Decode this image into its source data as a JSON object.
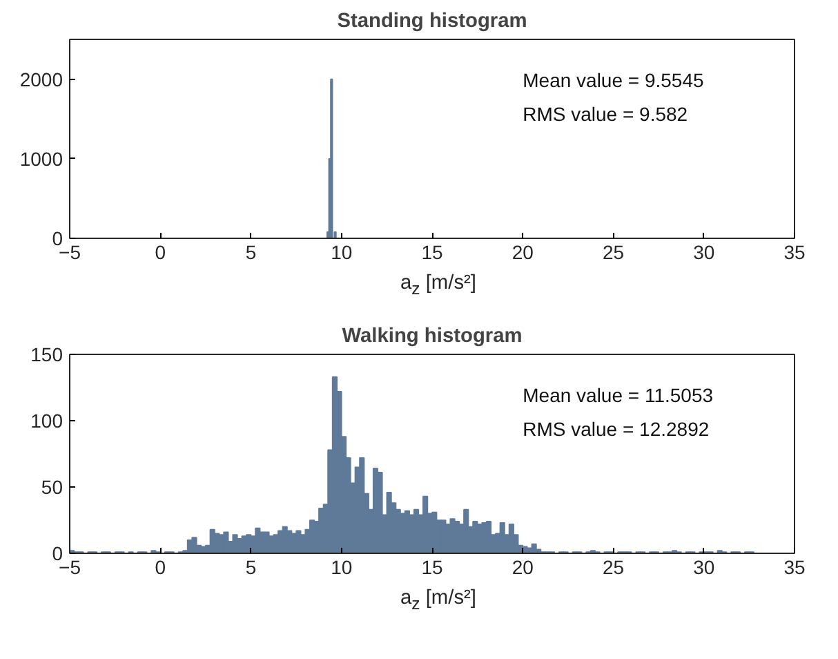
{
  "chart_data": [
    {
      "type": "histogram",
      "title": "Standing histogram",
      "xlabel": "a$_{z}$ [m/s²]",
      "bins": [
        9.0,
        9.1,
        9.2,
        9.3,
        9.4,
        9.5,
        9.6,
        9.7,
        9.8,
        9.9,
        10.0
      ],
      "values": [
        0,
        0,
        80,
        1000,
        2000,
        0,
        80,
        0,
        0,
        0
      ],
      "color": "#5f7a99",
      "xlim": [
        -5,
        35
      ],
      "ylim": [
        0,
        2500
      ],
      "xticks": [
        -5,
        0,
        5,
        10,
        15,
        20,
        25,
        30,
        35
      ],
      "yticks": [
        0,
        1000,
        2000
      ],
      "annotations": [
        "Mean value = 9.5545",
        "RMS value = 9.582"
      ]
    },
    {
      "type": "histogram",
      "title": "Walking histogram",
      "xlabel": "a$_{z}$ [m/s²]",
      "bins": [
        -5,
        -4.75,
        -4.5,
        -4.25,
        -4,
        -3.75,
        -3.5,
        -3.25,
        -3,
        -2.75,
        -2.5,
        -2.25,
        -2,
        -1.75,
        -1.5,
        -1.25,
        -1,
        -0.75,
        -0.5,
        -0.25,
        0,
        0.25,
        0.5,
        0.75,
        1,
        1.25,
        1.5,
        1.75,
        2,
        2.25,
        2.5,
        2.75,
        3,
        3.25,
        3.5,
        3.75,
        4,
        4.25,
        4.5,
        4.75,
        5,
        5.25,
        5.5,
        5.75,
        6,
        6.25,
        6.5,
        6.75,
        7,
        7.25,
        7.5,
        7.75,
        8,
        8.25,
        8.5,
        8.75,
        9,
        9.25,
        9.5,
        9.75,
        10,
        10.25,
        10.5,
        10.75,
        11,
        11.25,
        11.5,
        11.75,
        12,
        12.25,
        12.5,
        12.75,
        13,
        13.25,
        13.5,
        13.75,
        14,
        14.25,
        14.5,
        14.75,
        15,
        15.25,
        15.5,
        15.75,
        16,
        16.25,
        16.5,
        16.75,
        17,
        17.25,
        17.5,
        17.75,
        18,
        18.25,
        18.5,
        18.75,
        19,
        19.25,
        19.5,
        19.75,
        20,
        20.25,
        20.5,
        20.75,
        21,
        21.25,
        21.5,
        21.75,
        22,
        22.25,
        22.5,
        22.75,
        23,
        23.25,
        23.5,
        23.75,
        24,
        24.25,
        24.5,
        24.75,
        25,
        25.25,
        25.5,
        25.75,
        26,
        26.25,
        26.5,
        26.75,
        27,
        27.25,
        27.5,
        27.75,
        28,
        28.25,
        28.5,
        28.75,
        29,
        29.25,
        29.5,
        29.75,
        30,
        30.25,
        30.5,
        30.75,
        31,
        31.25,
        31.5,
        31.75,
        32,
        32.25,
        32.5,
        32.75,
        33
      ],
      "values": [
        2,
        1,
        1,
        0,
        1,
        1,
        0,
        1,
        1,
        0,
        1,
        1,
        0,
        1,
        0,
        1,
        1,
        0,
        2,
        1,
        0,
        1,
        1,
        0,
        1,
        2,
        10,
        12,
        6,
        5,
        6,
        18,
        15,
        14,
        16,
        9,
        14,
        11,
        13,
        14,
        13,
        19,
        16,
        16,
        13,
        14,
        17,
        20,
        17,
        15,
        17,
        14,
        18,
        25,
        24,
        34,
        37,
        78,
        133,
        122,
        88,
        72,
        53,
        65,
        72,
        45,
        33,
        64,
        61,
        29,
        46,
        38,
        33,
        30,
        32,
        29,
        33,
        29,
        43,
        30,
        31,
        25,
        25,
        22,
        26,
        24,
        22,
        33,
        20,
        24,
        22,
        23,
        24,
        14,
        15,
        23,
        14,
        22,
        14,
        6,
        5,
        4,
        7,
        3,
        1,
        1,
        1,
        0,
        1,
        1,
        0,
        1,
        1,
        0,
        1,
        2,
        1,
        0,
        1,
        1,
        0,
        1,
        1,
        1,
        0,
        1,
        1,
        0,
        1,
        1,
        0,
        1,
        1,
        2,
        1,
        0,
        1,
        1,
        0,
        1,
        1,
        1,
        0,
        2,
        1,
        0,
        1,
        1,
        0,
        1,
        1,
        0
      ],
      "color": "#5f7a99",
      "xlim": [
        -5,
        35
      ],
      "ylim": [
        0,
        150
      ],
      "xticks": [
        -5,
        0,
        5,
        10,
        15,
        20,
        25,
        30,
        35
      ],
      "yticks": [
        0,
        50,
        100,
        150
      ],
      "annotations": [
        "Mean value = 11.5053",
        "RMS value = 12.2892"
      ]
    }
  ]
}
